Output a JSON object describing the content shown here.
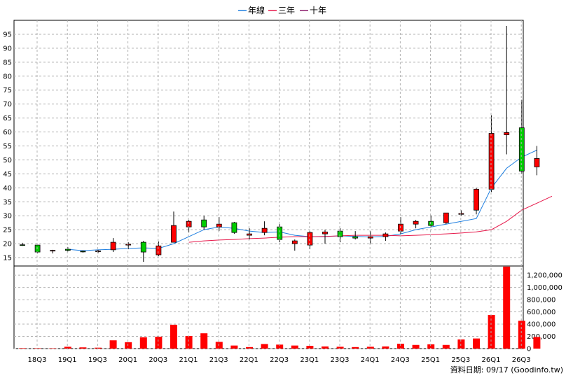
{
  "chart_data": {
    "type": "candlestick",
    "legend": [
      {
        "name": "年線",
        "color": "#1f7fe0"
      },
      {
        "name": "三年",
        "color": "#e6194b"
      },
      {
        "name": "十年",
        "color": "#8b1a6b"
      }
    ],
    "legend_placement": "top-center",
    "grid": true,
    "colors": {
      "up": "#ff0000",
      "down": "#00cc00",
      "volume": "#ff0000"
    },
    "x_ticks": [
      "18Q3",
      "19Q1",
      "19Q3",
      "20Q1",
      "20Q3",
      "21Q1",
      "21Q3",
      "22Q1",
      "22Q3",
      "23Q1",
      "23Q3",
      "24Q1",
      "24Q3",
      "25Q1",
      "25Q3",
      "26Q1",
      "26Q3"
    ],
    "price_axis": {
      "ticks": [
        15,
        20,
        25,
        30,
        35,
        40,
        45,
        50,
        55,
        60,
        65,
        70,
        75,
        80,
        85,
        90,
        95
      ],
      "range": [
        12,
        100
      ],
      "position": "left"
    },
    "volume_axis": {
      "ticks": [
        "0",
        "200,000",
        "400,000",
        "600,000",
        "800,000",
        "1,000,000",
        "1,200,000"
      ],
      "range": [
        0,
        1350000
      ],
      "position": "right"
    },
    "candles": [
      {
        "o": 19.6,
        "h": 20.3,
        "l": 19.2,
        "c": 19.4
      },
      {
        "o": 19.5,
        "h": 19.6,
        "l": 16.5,
        "c": 17.0
      },
      {
        "o": 17.5,
        "h": 17.8,
        "l": 16.5,
        "c": 17.6
      },
      {
        "o": 18.0,
        "h": 18.8,
        "l": 17.2,
        "c": 17.6
      },
      {
        "o": 17.3,
        "h": 17.6,
        "l": 16.8,
        "c": 17.1
      },
      {
        "o": 17.2,
        "h": 17.8,
        "l": 16.6,
        "c": 17.4
      },
      {
        "o": 17.8,
        "h": 22.0,
        "l": 17.0,
        "c": 20.5
      },
      {
        "o": 19.5,
        "h": 20.5,
        "l": 18.0,
        "c": 19.8
      },
      {
        "o": 20.5,
        "h": 21.0,
        "l": 13.5,
        "c": 17.0
      },
      {
        "o": 16.0,
        "h": 20.8,
        "l": 15.5,
        "c": 19.2
      },
      {
        "o": 20.5,
        "h": 31.5,
        "l": 20.5,
        "c": 26.5
      },
      {
        "o": 26.0,
        "h": 28.5,
        "l": 24.0,
        "c": 28.0
      },
      {
        "o": 28.5,
        "h": 30.0,
        "l": 25.0,
        "c": 26.0
      },
      {
        "o": 26.0,
        "h": 29.5,
        "l": 24.5,
        "c": 27.0
      },
      {
        "o": 27.5,
        "h": 27.8,
        "l": 23.5,
        "c": 24.0
      },
      {
        "o": 23.0,
        "h": 25.5,
        "l": 21.5,
        "c": 23.5
      },
      {
        "o": 24.0,
        "h": 28.0,
        "l": 23.0,
        "c": 25.5
      },
      {
        "o": 26.0,
        "h": 27.0,
        "l": 20.5,
        "c": 21.5
      },
      {
        "o": 20.0,
        "h": 21.5,
        "l": 17.5,
        "c": 21.0
      },
      {
        "o": 19.5,
        "h": 24.5,
        "l": 18.0,
        "c": 24.0
      },
      {
        "o": 23.5,
        "h": 25.0,
        "l": 20.0,
        "c": 24.2
      },
      {
        "o": 24.5,
        "h": 25.5,
        "l": 20.5,
        "c": 22.5
      },
      {
        "o": 22.5,
        "h": 24.5,
        "l": 21.5,
        "c": 22.0
      },
      {
        "o": 22.0,
        "h": 24.5,
        "l": 20.0,
        "c": 22.5
      },
      {
        "o": 22.5,
        "h": 24.0,
        "l": 21.0,
        "c": 23.5
      },
      {
        "o": 24.5,
        "h": 29.5,
        "l": 23.5,
        "c": 27.0
      },
      {
        "o": 27.0,
        "h": 28.5,
        "l": 25.5,
        "c": 28.0
      },
      {
        "o": 28.0,
        "h": 30.0,
        "l": 26.0,
        "c": 26.5
      },
      {
        "o": 27.5,
        "h": 31.0,
        "l": 27.0,
        "c": 31.0
      },
      {
        "o": 30.5,
        "h": 32.0,
        "l": 30.0,
        "c": 30.8
      },
      {
        "o": 32.0,
        "h": 40.0,
        "l": 30.5,
        "c": 39.5
      },
      {
        "o": 39.5,
        "h": 66.0,
        "l": 38.5,
        "c": 59.5
      },
      {
        "o": 59.0,
        "h": 98.0,
        "l": 52.0,
        "c": 59.8
      },
      {
        "o": 61.5,
        "h": 71.5,
        "l": 45.0,
        "c": 46.0
      },
      {
        "o": 47.5,
        "h": 55.0,
        "l": 44.5,
        "c": 50.5
      }
    ],
    "volume": [
      7000,
      7000,
      5000,
      30000,
      20000,
      15000,
      135000,
      105000,
      185000,
      195000,
      390000,
      205000,
      250000,
      110000,
      50000,
      25000,
      75000,
      65000,
      50000,
      45000,
      35000,
      30000,
      25000,
      30000,
      35000,
      80000,
      60000,
      70000,
      60000,
      150000,
      165000,
      550000,
      1340000,
      455000,
      190000
    ],
    "series": [
      {
        "name": "年線",
        "start_index": 0,
        "values": [
          null,
          null,
          null,
          18.0,
          17.5,
          17.8,
          18.0,
          18.3,
          18.5,
          18.3,
          20.0,
          22.5,
          25.0,
          26.0,
          25.5,
          24.5,
          24.0,
          24.2,
          23.0,
          22.5,
          22.5,
          22.8,
          22.6,
          22.4,
          22.6,
          23.5,
          25.0,
          26.0,
          27.0,
          28.0,
          29.0,
          40.0,
          47.0,
          51.0,
          53.5
        ]
      },
      {
        "name": "三年",
        "start_index": 11,
        "values": [
          20.5,
          21.0,
          21.3,
          21.5,
          21.8,
          22.0,
          22.3,
          22.5,
          22.5,
          22.6,
          22.8,
          23.0,
          23.0,
          23.0,
          22.8,
          23.0,
          23.2,
          23.5,
          23.8,
          24.2,
          25.0,
          28.0,
          32.0,
          34.5,
          37.0
        ]
      }
    ]
  },
  "source_note": "資料日期: 09/17  (Goodinfo.tw)"
}
